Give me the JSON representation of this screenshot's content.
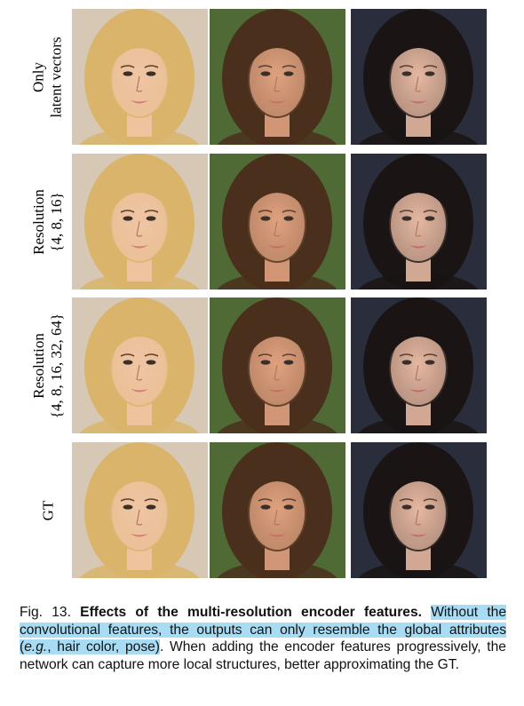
{
  "figure": {
    "rows": [
      {
        "label_lines": [
          "Only",
          "latent vectors"
        ]
      },
      {
        "label_lines": [
          "Resolution",
          "{4, 8, 16}"
        ]
      },
      {
        "label_lines": [
          "Resolution",
          "{4, 8, 16, 32, 64}"
        ]
      },
      {
        "label_lines": [
          "GT"
        ]
      }
    ],
    "subjects": [
      {
        "name": "blonde-woman",
        "bg": "#d6c8b4",
        "hair": "#d9b46a",
        "skin": "#efc4a4",
        "lips": "#d67a78"
      },
      {
        "name": "curly-brunette",
        "bg": "#4f6a35",
        "hair": "#4a2f1c",
        "skin": "#dfa27f",
        "lips": "#c76d62"
      },
      {
        "name": "dark-haired-woman",
        "bg": "#2a2e3c",
        "hair": "#1a1414",
        "skin": "#e6b8a2",
        "lips": "#c46a6c"
      }
    ]
  },
  "caption": {
    "fig_num": "Fig. 13.",
    "title": "Effects of the multi-resolution encoder features.",
    "hl_part1": "Without the convolutional features, the outputs can only resemble the global attributes (",
    "eg": "e.g.",
    "hl_part2": ", hair color, pose)",
    "rest": ". When adding the encoder features progressively, the network can capture more local structures, better approximating the GT."
  }
}
